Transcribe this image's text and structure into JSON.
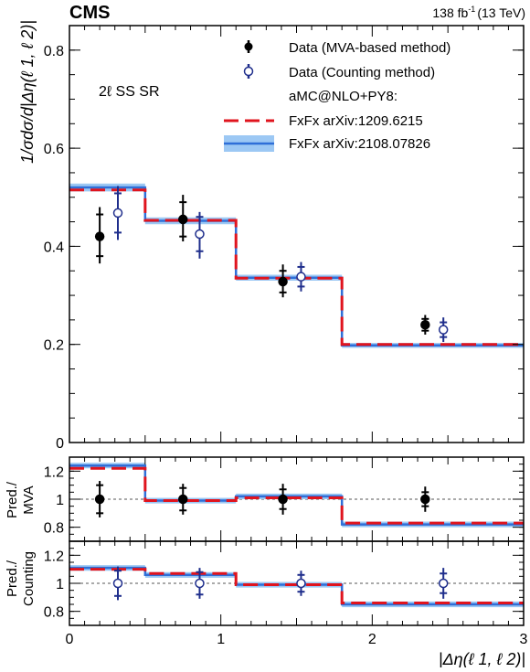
{
  "header": {
    "experiment": "CMS",
    "lumi_value": "138 fb",
    "lumi_exp": "-1",
    "lumi_energy": "(13 TeV)"
  },
  "chart_data": {
    "type": "line",
    "region_label": "2ℓ SS SR",
    "xlabel": "|Δη(ℓ 1, ℓ 2)|",
    "xlim": [
      0,
      3
    ],
    "x_ticks": [
      0,
      1,
      2,
      3
    ],
    "bin_edges": [
      0,
      0.5,
      1.1,
      1.8,
      3.0
    ],
    "colors": {
      "data": "#000000",
      "counting": "#1f2e8c",
      "red": "#e0141e",
      "blue": "#2f6fd8",
      "band": "#9cc8f4"
    },
    "main": {
      "ylabel": "1/σdσ/d|Δη(ℓ 1, ℓ 2)|",
      "ylim": [
        0,
        0.85
      ],
      "y_ticks": [
        0,
        0.2,
        0.4,
        0.6,
        0.8
      ],
      "series": [
        {
          "name": "Data (MVA-based method)",
          "kind": "data_mva",
          "x": [
            0.2,
            0.75,
            1.41,
            2.35
          ],
          "y": [
            0.42,
            0.455,
            0.328,
            0.24
          ],
          "err_lo": [
            0.055,
            0.045,
            0.032,
            0.02
          ],
          "err_hi": [
            0.06,
            0.05,
            0.035,
            0.02
          ],
          "err_sys_lo": [
            0.04,
            0.035,
            0.022,
            0.012
          ],
          "err_sys_hi": [
            0.045,
            0.035,
            0.022,
            0.012
          ]
        },
        {
          "name": "Data (Counting method)",
          "kind": "data_count",
          "x": [
            0.32,
            0.86,
            1.53,
            2.47
          ],
          "y": [
            0.468,
            0.425,
            0.338,
            0.23
          ],
          "err_lo": [
            0.055,
            0.05,
            0.03,
            0.025
          ],
          "err_hi": [
            0.055,
            0.045,
            0.03,
            0.025
          ],
          "err_sys_lo": [
            0.04,
            0.035,
            0.02,
            0.015
          ],
          "err_sys_hi": [
            0.04,
            0.035,
            0.02,
            0.015
          ]
        },
        {
          "name": "FxFx arXiv:1209.6215",
          "kind": "pred_red",
          "values": [
            0.515,
            0.453,
            0.335,
            0.2
          ]
        },
        {
          "name": "FxFx arXiv:2108.07826",
          "kind": "pred_blue",
          "values": [
            0.52,
            0.452,
            0.336,
            0.198
          ],
          "band_half": [
            0.008,
            0.007,
            0.006,
            0.005
          ]
        }
      ],
      "legend_header": "aMC@NLO+PY8:",
      "legend_position": "top-right"
    },
    "ratio_mva": {
      "ylabel_1": "Pred./",
      "ylabel_2": "MVA",
      "ylim": [
        0.7,
        1.3
      ],
      "y_ticks": [
        0.8,
        1,
        1.2
      ],
      "points": {
        "x": [
          0.2,
          0.75,
          1.41,
          2.35
        ],
        "y": [
          1,
          1,
          1,
          1
        ],
        "err_lo": [
          0.13,
          0.11,
          0.11,
          0.09
        ],
        "err_hi": [
          0.13,
          0.11,
          0.11,
          0.09
        ],
        "err_sys_lo": [
          0.1,
          0.08,
          0.07,
          0.05
        ],
        "err_sys_hi": [
          0.1,
          0.08,
          0.07,
          0.05
        ]
      },
      "red": [
        1.22,
        0.99,
        1.01,
        0.83
      ],
      "blue": [
        1.24,
        0.99,
        1.02,
        0.82
      ],
      "band_half": [
        0.02,
        0.02,
        0.02,
        0.02
      ]
    },
    "ratio_counting": {
      "ylabel_1": "Pred./",
      "ylabel_2": "Counting",
      "ylim": [
        0.7,
        1.3
      ],
      "y_ticks": [
        0.8,
        1,
        1.2
      ],
      "points": {
        "x": [
          0.32,
          0.86,
          1.53,
          2.47
        ],
        "y": [
          1,
          1,
          1,
          1
        ],
        "err_lo": [
          0.12,
          0.11,
          0.09,
          0.11
        ],
        "err_hi": [
          0.12,
          0.11,
          0.09,
          0.11
        ],
        "err_sys_lo": [
          0.09,
          0.08,
          0.06,
          0.07
        ],
        "err_sys_hi": [
          0.09,
          0.08,
          0.06,
          0.07
        ]
      },
      "red": [
        1.1,
        1.07,
        0.99,
        0.86
      ],
      "blue": [
        1.11,
        1.06,
        0.99,
        0.85
      ],
      "band_half": [
        0.02,
        0.02,
        0.02,
        0.02
      ]
    }
  }
}
